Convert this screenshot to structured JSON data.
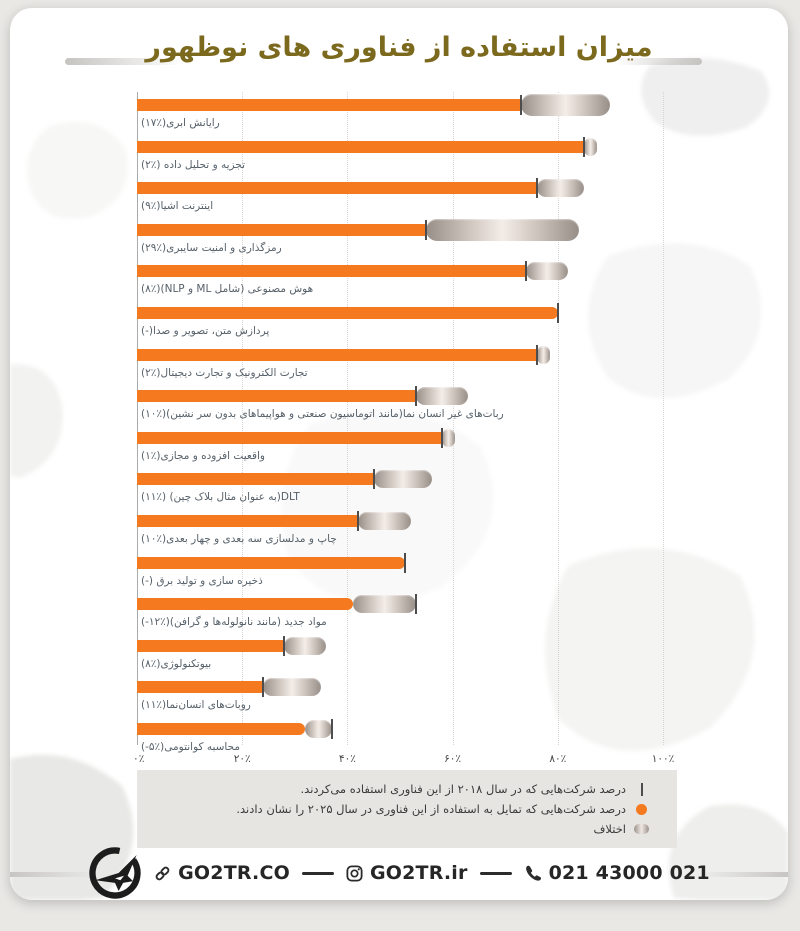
{
  "page": {
    "background": "#e9e8e5",
    "card_background": "#ffffff",
    "accent_orange": "#f5791f",
    "title_color": "#7b691e"
  },
  "header": {
    "title": "میزان استفاده از فناوری های نوظهور"
  },
  "chart_data": {
    "type": "bar",
    "orientation": "horizontal",
    "title": "میزان استفاده از فناوری های نوظهور",
    "xlabel": "",
    "ylabel": "",
    "xlim": [
      0,
      100
    ],
    "grid": "vertical-dotted",
    "legend_position": "bottom",
    "bar_color": "#f5791f",
    "diff_pill_colors": [
      "#988e88",
      "#f4ede7",
      "#988e88"
    ],
    "tick_color": "#4d4d4d",
    "x_ticks": [
      {
        "value": 0,
        "label": "۰٪"
      },
      {
        "value": 20,
        "label": "۲۰٪"
      },
      {
        "value": 40,
        "label": "۴۰٪"
      },
      {
        "value": 60,
        "label": "۶۰٪"
      },
      {
        "value": 80,
        "label": "۸۰٪"
      },
      {
        "value": 100,
        "label": "۱۰۰٪"
      }
    ],
    "rows": [
      {
        "key": "cloud-computing",
        "label": "رایانش ابری‎(۱۷٪)‎",
        "value_2018": 73,
        "value_2025": 90,
        "diff_percent": 17
      },
      {
        "key": "data-analytics",
        "label": "تجزیه و تحلیل داده ‎(۲٪)‎",
        "value_2018": 85,
        "value_2025": 87,
        "diff_percent": 2
      },
      {
        "key": "internet-of-things",
        "label": "اینترنت اشیا‎(۹٪)‎",
        "value_2018": 76,
        "value_2025": 85,
        "diff_percent": 9
      },
      {
        "key": "encryption-cybersecurity",
        "label": "رمزگذاری و امنیت سایبری‎(۲۹٪)‎",
        "value_2018": 55,
        "value_2025": 84,
        "diff_percent": 29
      },
      {
        "key": "ai-ml-nlp",
        "label": "هوش مصنوعی (شامل ML و NLP)‎(۸٪)‎",
        "value_2018": 74,
        "value_2025": 82,
        "diff_percent": 8
      },
      {
        "key": "text-image-voice-processing",
        "label": "پردازش متن، تصویر و صدا‎(-)‎",
        "value_2018": 80,
        "value_2025": 80,
        "diff_percent": 0
      },
      {
        "key": "ecommerce-digital-trade",
        "label": "تجارت الکترونیک و تجارت دیجیتال‎(۲٪)‎",
        "value_2018": 76,
        "value_2025": 78,
        "diff_percent": 2
      },
      {
        "key": "non-humanoid-robots",
        "label": "ربات‌های غیر انسان نما(مانند اتوماسیون صنعتی و هواپیماهای بدون سر نشین)‎(۱۰٪)‎",
        "value_2018": 53,
        "value_2025": 63,
        "diff_percent": 10
      },
      {
        "key": "ar-vr",
        "label": "واقعیت افزوده و مجازی‎(۱٪)‎",
        "value_2018": 58,
        "value_2025": 59,
        "diff_percent": 1
      },
      {
        "key": "dlt-blockchain",
        "label": "DLT(به عنوان مثال بلاک چین) ‎(۱۱٪)‎",
        "value_2018": 45,
        "value_2025": 56,
        "diff_percent": 11
      },
      {
        "key": "3d-4d-printing-modeling",
        "label": "چاپ و مدلسازی سه بعدی و چهار بعدی‎(۱۰٪)‎",
        "value_2018": 42,
        "value_2025": 52,
        "diff_percent": 10
      },
      {
        "key": "power-storage-generation",
        "label": "ذخیره سازی و تولید برق ‎(-)‎",
        "value_2018": 51,
        "value_2025": 51,
        "diff_percent": 0
      },
      {
        "key": "new-materials",
        "label": "مواد جدید (مانند نانولوله‌ها و گرافن)‎(-۱۲٪)‎",
        "value_2018": 53,
        "value_2025": 41,
        "diff_percent": -12
      },
      {
        "key": "biotechnology",
        "label": "بیوتکنولوژی‎(۸٪)‎",
        "value_2018": 28,
        "value_2025": 36,
        "diff_percent": 8
      },
      {
        "key": "humanoid-robots",
        "label": "روبات‌های انسان‌نما‎(۱۱٪)‎",
        "value_2018": 24,
        "value_2025": 35,
        "diff_percent": 11
      },
      {
        "key": "quantum-computing",
        "label": "محاسبه کوانتومی‎(-۵٪)‎",
        "value_2018": 37,
        "value_2025": 32,
        "diff_percent": -5
      }
    ],
    "legend": [
      {
        "key": "used-2018",
        "icon": "tick-icon",
        "text": "درصد شرکت‌هایی که در سال ۲۰۱۸ از این فناوری استفاده می‌کردند."
      },
      {
        "key": "willing-2025",
        "icon": "dot-icon",
        "text": "درصد شرکت‌هایی که تمایل به استفاده از این فناوری در سال ۲۰۲۵ را نشان دادند."
      },
      {
        "key": "difference",
        "icon": "pill-icon",
        "text": "اختلاف"
      }
    ]
  },
  "footer": {
    "website_label": "GO2TR.CO",
    "instagram_label": "GO2TR.ir",
    "phone_label": "021 43000 021"
  }
}
